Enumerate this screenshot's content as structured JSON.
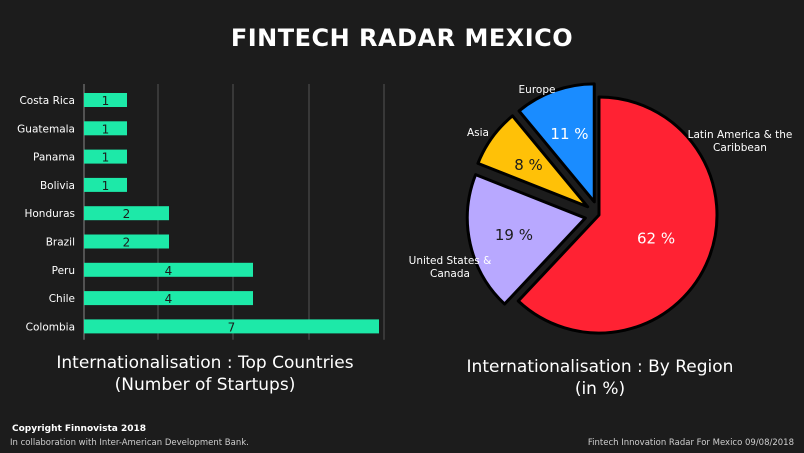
{
  "title": "FINTECH RADAR MEXICO",
  "colors": {
    "background": "#1c1c1c",
    "bar": "#1de9a8",
    "gridline": "#555555",
    "latam": "#ff2233",
    "us_canada": "#b8a8ff",
    "asia": "#ffc107",
    "europe": "#1a8cff"
  },
  "chart_data": [
    {
      "type": "bar",
      "orientation": "horizontal",
      "categories": [
        "Costa Rica",
        "Guatemala",
        "Panama",
        "Bolivia",
        "Honduras",
        "Brazil",
        "Peru",
        "Chile",
        "Colombia"
      ],
      "values": [
        1,
        1,
        1,
        1,
        2,
        2,
        4,
        4,
        7
      ],
      "title": "Internationalisation : Top Countries",
      "subtitle": "(Number of Startups)",
      "xlim": [
        0,
        7
      ],
      "grid": true
    },
    {
      "type": "pie",
      "labels": [
        "Latin America & the Caribbean",
        "United States & Canada",
        "Asia",
        "Europe"
      ],
      "label_lines": [
        [
          "Latin America & the",
          "Caribbean"
        ],
        [
          "United States &",
          "Canada"
        ],
        [
          "Asia"
        ],
        [
          "Europe"
        ]
      ],
      "values": [
        62,
        19,
        8,
        11
      ],
      "value_labels": [
        "62 %",
        "19 %",
        "8 %",
        "11 %"
      ],
      "title": "Internationalisation : By Region",
      "subtitle": "(in %)"
    }
  ],
  "footer": {
    "copyright": "Copyright Finnovista 2018",
    "collaboration": "In collaboration with Inter-American Development Bank.",
    "radar": "Fintech Innovation Radar For Mexico 09/08/2018"
  }
}
